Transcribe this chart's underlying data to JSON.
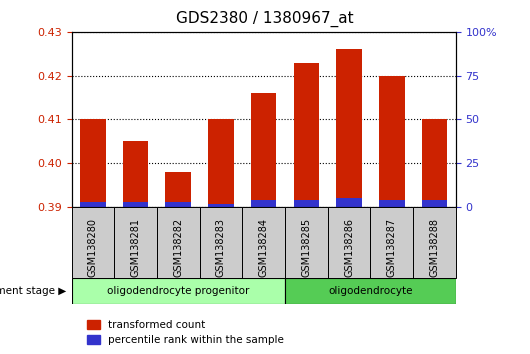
{
  "title": "GDS2380 / 1380967_at",
  "samples": [
    "GSM138280",
    "GSM138281",
    "GSM138282",
    "GSM138283",
    "GSM138284",
    "GSM138285",
    "GSM138286",
    "GSM138287",
    "GSM138288"
  ],
  "transformed_counts": [
    0.41,
    0.405,
    0.398,
    0.41,
    0.416,
    0.423,
    0.426,
    0.42,
    0.41
  ],
  "percentile_ranks": [
    3.0,
    3.0,
    3.0,
    2.0,
    4.0,
    4.0,
    5.0,
    4.0,
    4.0
  ],
  "ylim_left": [
    0.39,
    0.43
  ],
  "ylim_right": [
    0,
    100
  ],
  "yticks_left": [
    0.39,
    0.4,
    0.41,
    0.42,
    0.43
  ],
  "yticks_right": [
    0,
    25,
    50,
    75,
    100
  ],
  "bar_width": 0.6,
  "red_color": "#cc2200",
  "blue_color": "#3333cc",
  "group1_label": "oligodendrocyte progenitor",
  "group2_label": "oligodendrocyte",
  "group1_indices": [
    0,
    1,
    2,
    3,
    4
  ],
  "group2_indices": [
    5,
    6,
    7,
    8
  ],
  "group1_color": "#aaffaa",
  "group2_color": "#55cc55",
  "legend_red": "transformed count",
  "legend_blue": "percentile rank within the sample",
  "dev_stage_label": "development stage",
  "title_fontsize": 11,
  "tick_fontsize": 8,
  "base_value": 0.39
}
